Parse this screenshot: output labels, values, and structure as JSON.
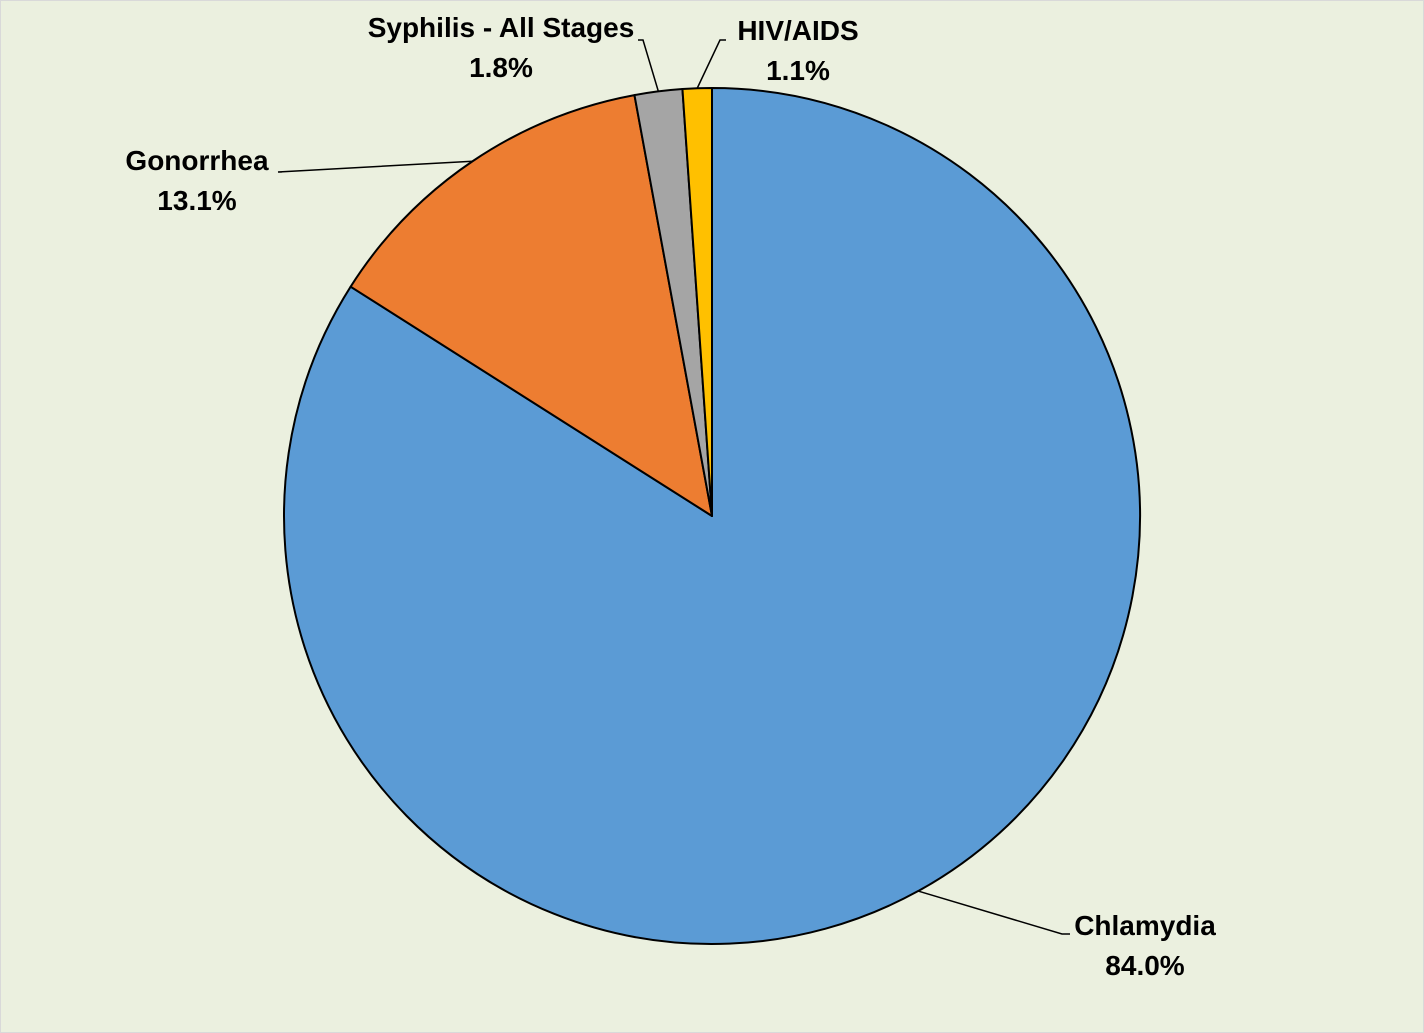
{
  "chart_data": {
    "type": "pie",
    "title": "",
    "start_angle_deg": 0,
    "direction": "clockwise",
    "slices": [
      {
        "name": "Chlamydia",
        "value": 84.0,
        "label": "84.0%",
        "color": "#5b9bd5"
      },
      {
        "name": "Gonorrhea",
        "value": 13.1,
        "label": "13.1%",
        "color": "#ed7d31"
      },
      {
        "name": "Syphilis - All Stages",
        "value": 1.8,
        "label": "1.8%",
        "color": "#a5a5a5"
      },
      {
        "name": "HIV/AIDS",
        "value": 1.1,
        "label": "1.1%",
        "color": "#ffc000"
      }
    ],
    "legend": "none",
    "background_color": "#ebf0df"
  }
}
